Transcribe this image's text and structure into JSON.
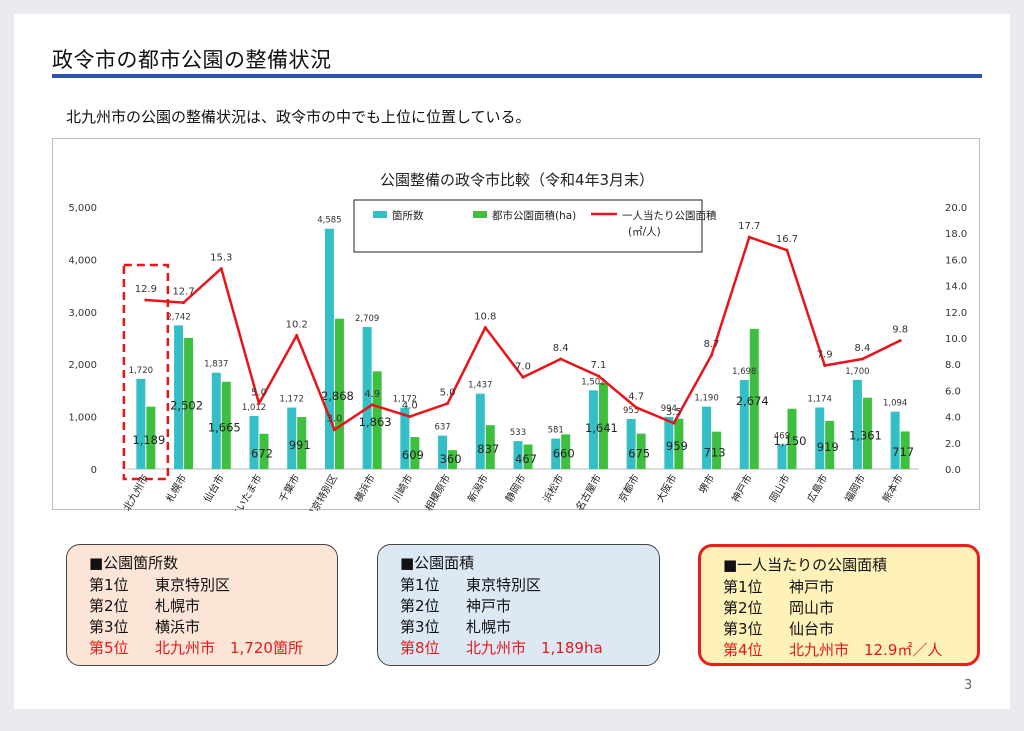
{
  "header": {
    "title": "政令市の都市公園の整備状況",
    "subtitle": "北九州市の公園の整備状況は、政令市の中でも上位に位置している。"
  },
  "chart_data": {
    "type": "bar",
    "title": "公園整備の政令市比較（令和4年3月末）",
    "categories": [
      "北九州市",
      "札幌市",
      "仙台市",
      "さいたま市",
      "千葉市",
      "東京特別区",
      "横浜市",
      "川崎市",
      "相模原市",
      "新潟市",
      "静岡市",
      "浜松市",
      "名古屋市",
      "京都市",
      "大阪市",
      "堺市",
      "神戸市",
      "岡山市",
      "広島市",
      "福岡市",
      "熊本市"
    ],
    "series": [
      {
        "name": "箇所数",
        "type": "bar",
        "axis": "left",
        "color": "#33bfc5",
        "values": [
          1720,
          2742,
          1837,
          1012,
          1172,
          4585,
          2709,
          1172,
          637,
          1437,
          533,
          581,
          1502,
          955,
          994,
          1190,
          1698,
          469,
          1174,
          1700,
          1094
        ],
        "labels": [
          "1,720",
          "2,742",
          "1,837",
          "1,012",
          "1,172",
          "4,585",
          "2,709",
          "1,172",
          "637",
          "1,437",
          "533",
          "581",
          "1,502",
          "955",
          "994",
          "1,190",
          "1,698",
          "469",
          "1,174",
          "1,700",
          "1,094"
        ]
      },
      {
        "name": "都市公園面積(ha)",
        "type": "bar",
        "axis": "left",
        "color": "#3fbf3f",
        "values": [
          1189,
          2502,
          1665,
          672,
          991,
          2868,
          1863,
          609,
          360,
          837,
          467,
          660,
          1641,
          675,
          959,
          713,
          2674,
          1150,
          919,
          1361,
          717
        ],
        "labels": [
          "1,189",
          "2,502",
          "1,665",
          "672",
          "991",
          "2,868",
          "1,863",
          "609",
          "360",
          "837",
          "467",
          "660",
          "1,641",
          "675",
          "959",
          "713",
          "2,674",
          "1,150",
          "919",
          "1,361",
          "717"
        ]
      },
      {
        "name": "一人当たり公園面積",
        "name2": "(㎡/人)",
        "type": "line",
        "axis": "right",
        "color": "#e8141a",
        "values": [
          12.9,
          12.7,
          15.3,
          5.0,
          10.2,
          3.0,
          4.9,
          4.0,
          5.0,
          10.8,
          7.0,
          8.4,
          7.1,
          4.7,
          3.5,
          8.7,
          17.7,
          16.7,
          7.9,
          8.4,
          9.8
        ],
        "labels": [
          "12.9",
          "12.7",
          "15.3",
          "5.0",
          "10.2",
          "3.0",
          "4.9",
          "4.0",
          "5.0",
          "10.8",
          "7.0",
          "8.4",
          "7.1",
          "4.7",
          "3.5",
          "8.7",
          "17.7",
          "16.7",
          "7.9",
          "8.4",
          "9.8"
        ]
      }
    ],
    "y_left": {
      "min": 0,
      "max": 5000,
      "ticks": [
        "0",
        "1,000",
        "2,000",
        "3,000",
        "4,000",
        "5,000"
      ]
    },
    "y_right": {
      "min": 0,
      "max": 20,
      "ticks": [
        "0.0",
        "2.0",
        "4.0",
        "6.0",
        "8.0",
        "10.0",
        "12.0",
        "14.0",
        "16.0",
        "18.0",
        "20.0"
      ]
    },
    "highlight_category": "北九州市",
    "highlight_color": "#e8141a",
    "legend_position": "top-center",
    "grid": false
  },
  "summary": {
    "count": {
      "heading": "■公園箇所数",
      "rows": [
        {
          "rank": "第1位",
          "text": "東京特別区",
          "highlight": false
        },
        {
          "rank": "第2位",
          "text": "札幌市",
          "highlight": false
        },
        {
          "rank": "第3位",
          "text": "横浜市",
          "highlight": false
        },
        {
          "rank": "第5位",
          "text": "北九州市　1,720箇所",
          "highlight": true
        }
      ]
    },
    "area": {
      "heading": "■公園面積",
      "rows": [
        {
          "rank": "第1位",
          "text": "東京特別区",
          "highlight": false
        },
        {
          "rank": "第2位",
          "text": "神戸市",
          "highlight": false
        },
        {
          "rank": "第3位",
          "text": "札幌市",
          "highlight": false
        },
        {
          "rank": "第8位",
          "text": "北九州市　1,189ha",
          "highlight": true
        }
      ]
    },
    "per_capita": {
      "heading": "■一人当たりの公園面積",
      "rows": [
        {
          "rank": "第1位",
          "text": "神戸市",
          "highlight": false
        },
        {
          "rank": "第2位",
          "text": "岡山市",
          "highlight": false
        },
        {
          "rank": "第3位",
          "text": "仙台市",
          "highlight": false
        },
        {
          "rank": "第4位",
          "text": "北九州市　12.9㎡／人",
          "highlight": true
        }
      ]
    }
  },
  "page_number": "3"
}
